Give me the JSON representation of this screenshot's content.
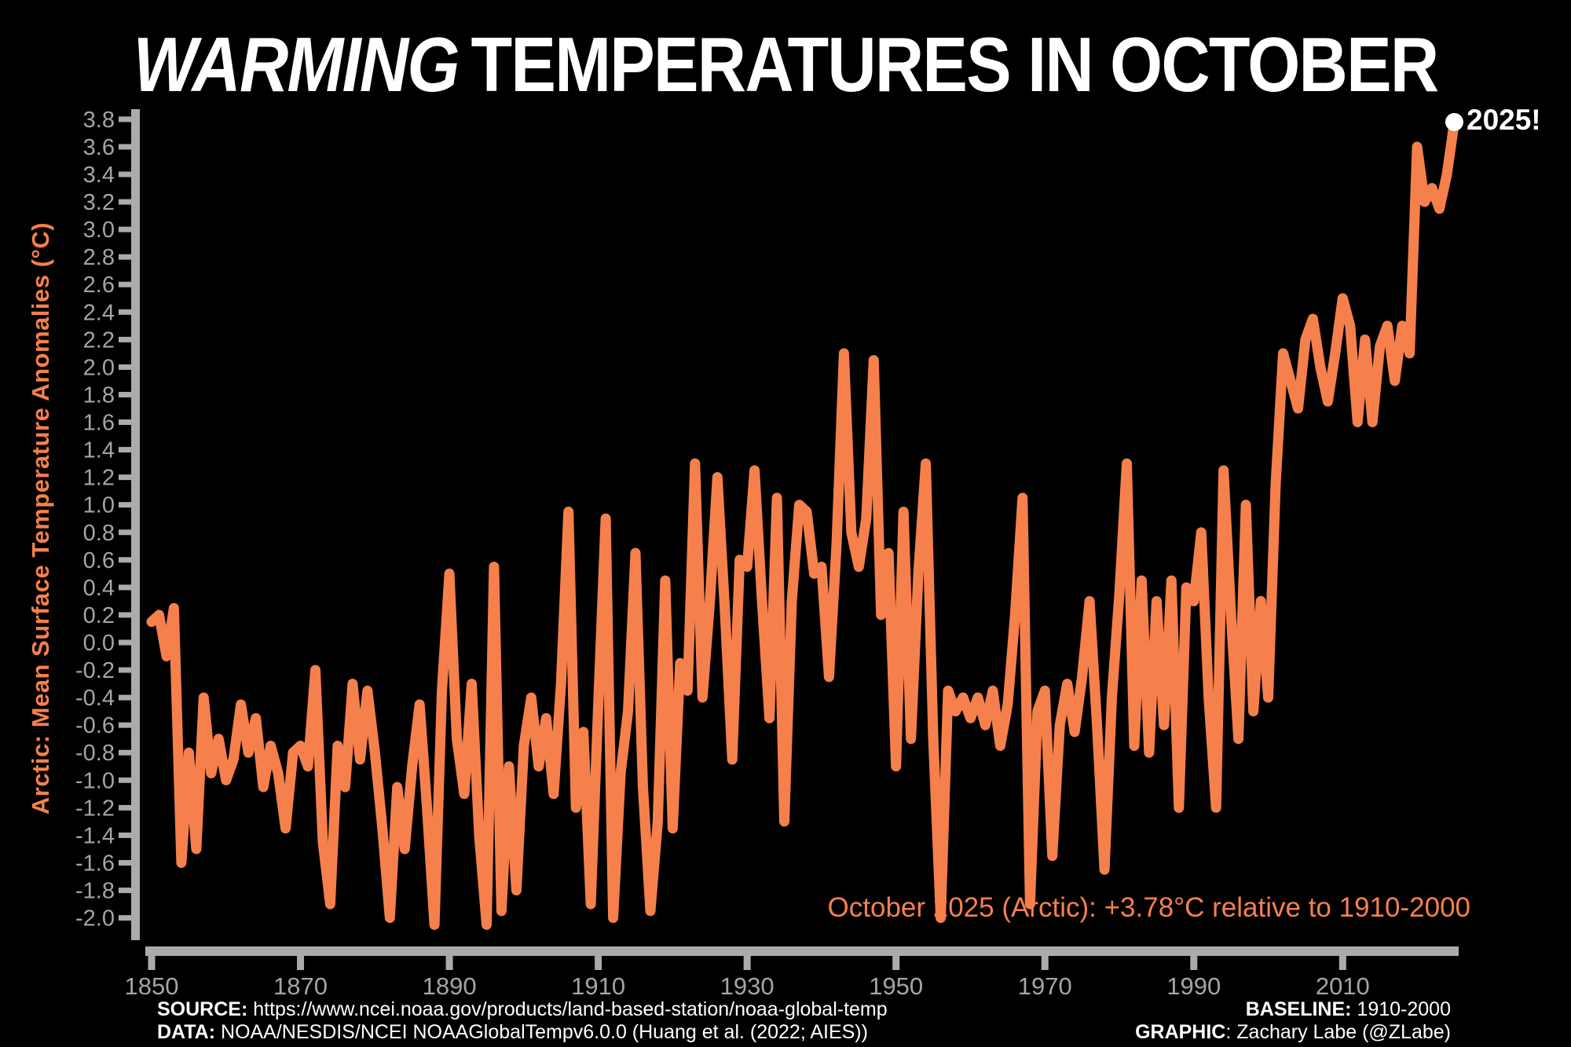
{
  "title": {
    "word_italic": "WARMING",
    "word_rest": "TEMPERATURES IN OCTOBER"
  },
  "annotation": "October 2025 (Arctic): +3.78°C relative to 1910-2000",
  "endpoint_label": "2025!",
  "footer": {
    "source_label": "SOURCE:",
    "source_value": " https://www.ncei.noaa.gov/products/land-based-station/noaa-global-temp",
    "data_label": "DATA:",
    "data_value": " NOAA/NESDIS/NCEI NOAAGlobalTempv6.0.0 (Huang et al. (2022; AIES))",
    "baseline_label": "BASELINE:",
    "baseline_value": " 1910-2000",
    "graphic_label": "GRAPHIC",
    "graphic_value": ": Zachary Labe (@ZLabe)"
  },
  "colors": {
    "background": "#000000",
    "line": "#F5804C",
    "accent_text": "#F5804C",
    "axis_bar": "#ABABAB",
    "tick_label": "#A5A5A5",
    "endpoint_dot": "#FFFFFF"
  },
  "chart_data": {
    "type": "line",
    "title": "WARMING TEMPERATURES IN OCTOBER",
    "ylabel": "Arctic: Mean Surface Temperature Anomalies (°C)",
    "xlabel": "",
    "legend": "none",
    "grid": false,
    "xlim": [
      1848.5,
      2026
    ],
    "ylim": [
      -2.1,
      3.9
    ],
    "y_ticks": [
      3.8,
      3.6,
      3.4,
      3.2,
      3.0,
      2.8,
      2.6,
      2.4,
      2.2,
      2.0,
      1.8,
      1.6,
      1.4,
      1.2,
      1.0,
      0.8,
      0.6,
      0.4,
      0.2,
      0.0,
      -0.2,
      -0.4,
      -0.6,
      -0.8,
      -1.0,
      -1.2,
      -1.4,
      -1.6,
      -1.8,
      -2.0
    ],
    "x_ticks": [
      1850,
      1870,
      1890,
      1910,
      1930,
      1950,
      1970,
      1990,
      2010
    ],
    "x_start_year": 1850,
    "x": [
      1850,
      1851,
      1852,
      1853,
      1854,
      1855,
      1856,
      1857,
      1858,
      1859,
      1860,
      1861,
      1862,
      1863,
      1864,
      1865,
      1866,
      1867,
      1868,
      1869,
      1870,
      1871,
      1872,
      1873,
      1874,
      1875,
      1876,
      1877,
      1878,
      1879,
      1880,
      1881,
      1882,
      1883,
      1884,
      1885,
      1886,
      1887,
      1888,
      1889,
      1890,
      1891,
      1892,
      1893,
      1894,
      1895,
      1896,
      1897,
      1898,
      1899,
      1900,
      1901,
      1902,
      1903,
      1904,
      1905,
      1906,
      1907,
      1908,
      1909,
      1910,
      1911,
      1912,
      1913,
      1914,
      1915,
      1916,
      1917,
      1918,
      1919,
      1920,
      1921,
      1922,
      1923,
      1924,
      1925,
      1926,
      1927,
      1928,
      1929,
      1930,
      1931,
      1932,
      1933,
      1934,
      1935,
      1936,
      1937,
      1938,
      1939,
      1940,
      1941,
      1942,
      1943,
      1944,
      1945,
      1946,
      1947,
      1948,
      1949,
      1950,
      1951,
      1952,
      1953,
      1954,
      1955,
      1956,
      1957,
      1958,
      1959,
      1960,
      1961,
      1962,
      1963,
      1964,
      1965,
      1966,
      1967,
      1968,
      1969,
      1970,
      1971,
      1972,
      1973,
      1974,
      1975,
      1976,
      1977,
      1978,
      1979,
      1980,
      1981,
      1982,
      1983,
      1984,
      1985,
      1986,
      1987,
      1988,
      1989,
      1990,
      1991,
      1992,
      1993,
      1994,
      1995,
      1996,
      1997,
      1998,
      1999,
      2000,
      2001,
      2002,
      2003,
      2004,
      2005,
      2006,
      2007,
      2008,
      2009,
      2010,
      2011,
      2012,
      2013,
      2014,
      2015,
      2016,
      2017,
      2018,
      2019,
      2020,
      2021,
      2022,
      2023,
      2024,
      2025
    ],
    "values": [
      0.15,
      0.2,
      -0.1,
      0.25,
      -1.6,
      -0.8,
      -1.5,
      -0.4,
      -0.95,
      -0.7,
      -1.0,
      -0.85,
      -0.45,
      -0.8,
      -0.55,
      -1.05,
      -0.75,
      -0.95,
      -1.35,
      -0.8,
      -0.75,
      -0.9,
      -0.2,
      -1.45,
      -1.9,
      -0.75,
      -1.05,
      -0.3,
      -0.85,
      -0.35,
      -0.8,
      -1.35,
      -2.0,
      -1.05,
      -1.5,
      -0.9,
      -0.45,
      -1.2,
      -2.05,
      -0.35,
      0.5,
      -0.7,
      -1.1,
      -0.3,
      -1.4,
      -2.05,
      0.55,
      -1.95,
      -0.9,
      -1.8,
      -0.75,
      -0.4,
      -0.9,
      -0.55,
      -1.1,
      -0.3,
      0.95,
      -1.2,
      -0.65,
      -1.9,
      -0.45,
      0.9,
      -2.0,
      -0.95,
      -0.5,
      0.65,
      -1.05,
      -1.95,
      -1.3,
      0.45,
      -1.35,
      -0.15,
      -0.35,
      1.3,
      -0.4,
      0.3,
      1.2,
      0.25,
      -0.85,
      0.6,
      0.55,
      1.25,
      0.3,
      -0.55,
      1.05,
      -1.3,
      0.3,
      1.0,
      0.95,
      0.5,
      0.55,
      -0.25,
      0.7,
      2.1,
      0.8,
      0.55,
      0.9,
      2.05,
      0.2,
      0.65,
      -0.9,
      0.95,
      -0.7,
      0.5,
      1.3,
      -0.7,
      -2.0,
      -0.35,
      -0.5,
      -0.4,
      -0.55,
      -0.4,
      -0.6,
      -0.35,
      -0.75,
      -0.45,
      0.2,
      1.05,
      -1.9,
      -0.5,
      -0.35,
      -1.55,
      -0.6,
      -0.3,
      -0.65,
      -0.25,
      0.3,
      -0.6,
      -1.65,
      -0.4,
      0.35,
      1.3,
      -0.75,
      0.45,
      -0.8,
      0.3,
      -0.6,
      0.45,
      -1.2,
      0.4,
      0.3,
      0.8,
      -0.4,
      -1.2,
      1.25,
      0.2,
      -0.7,
      1.0,
      -0.5,
      0.3,
      -0.4,
      1.15,
      2.1,
      1.9,
      1.7,
      2.2,
      2.35,
      2.0,
      1.75,
      2.1,
      2.5,
      2.3,
      1.6,
      2.2,
      1.6,
      2.15,
      2.3,
      1.9,
      2.3,
      2.1,
      3.6,
      3.2,
      3.3,
      3.15,
      3.4,
      3.78
    ],
    "endpoint": {
      "year": 2025,
      "value": 3.78,
      "label": "2025!"
    },
    "annotation": "October 2025 (Arctic): +3.78°C relative to 1910-2000",
    "baseline_note": "anomalies relative to 1910-2000"
  }
}
